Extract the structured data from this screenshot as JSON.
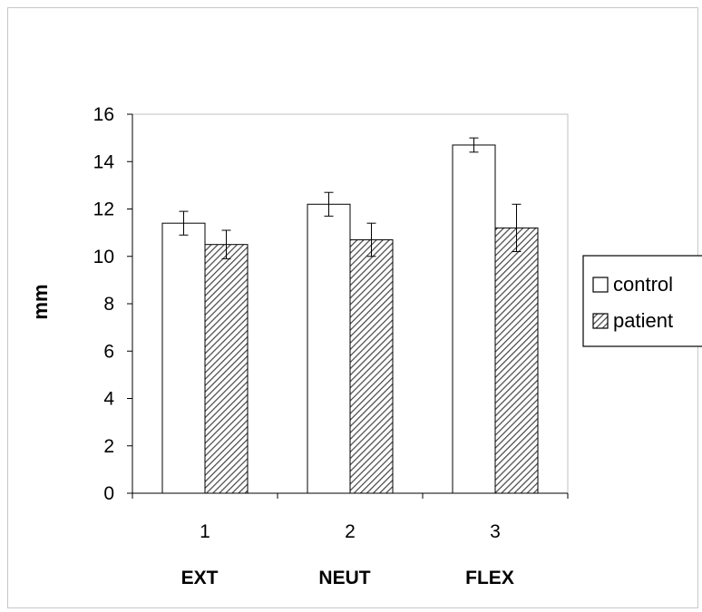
{
  "chart_data": {
    "type": "bar",
    "title": "",
    "xlabel": "",
    "ylabel": "mm",
    "ylim": [
      0,
      16
    ],
    "yticks": [
      0,
      2,
      4,
      6,
      8,
      10,
      12,
      14,
      16
    ],
    "categories": [
      "1",
      "2",
      "3"
    ],
    "category_names": [
      "EXT",
      "NEUT",
      "FLEX"
    ],
    "series": [
      {
        "name": "control",
        "values": [
          11.4,
          12.2,
          14.7
        ],
        "errors": [
          0.5,
          0.5,
          0.3
        ],
        "fill": "#ffffff"
      },
      {
        "name": "patient",
        "values": [
          10.5,
          10.7,
          11.2
        ],
        "errors": [
          0.6,
          0.7,
          1.0
        ],
        "fill": "hatch"
      }
    ],
    "grid": false,
    "legend_position": "right"
  }
}
